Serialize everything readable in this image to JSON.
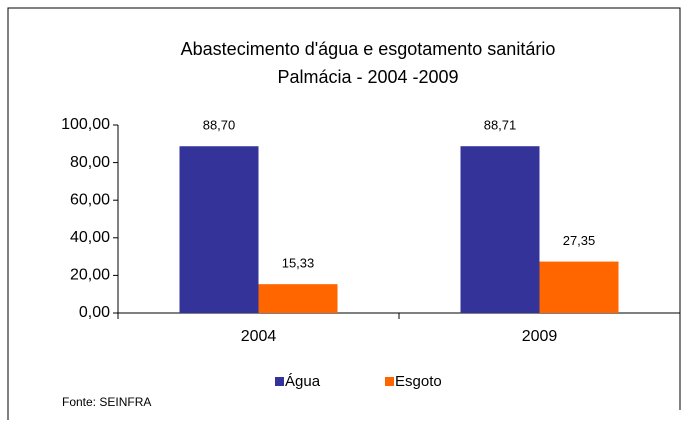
{
  "chart_data": {
    "type": "bar",
    "title": "Abastecimento d'água e esgotamento sanitário",
    "subtitle": "Palmácia - 2004 -2009",
    "categories": [
      "2004",
      "2009"
    ],
    "series": [
      {
        "name": "Água",
        "color": "#333399",
        "values": [
          88.7,
          88.71
        ],
        "value_labels": [
          "88,70",
          "88,71"
        ]
      },
      {
        "name": "Esgoto",
        "color": "#ff6600",
        "values": [
          15.33,
          27.35
        ],
        "value_labels": [
          "15,33",
          "27,35"
        ]
      }
    ],
    "ylim": [
      0,
      100
    ],
    "yticks": [
      {
        "value": 0,
        "label": "0,00"
      },
      {
        "value": 20,
        "label": "20,00"
      },
      {
        "value": 40,
        "label": "40,00"
      },
      {
        "value": 60,
        "label": "60,00"
      },
      {
        "value": 80,
        "label": "80,00"
      },
      {
        "value": 100,
        "label": "100,00"
      }
    ],
    "grid": false,
    "legend": "bottom",
    "annotations": [
      "Fonte: SEINFRA"
    ]
  }
}
